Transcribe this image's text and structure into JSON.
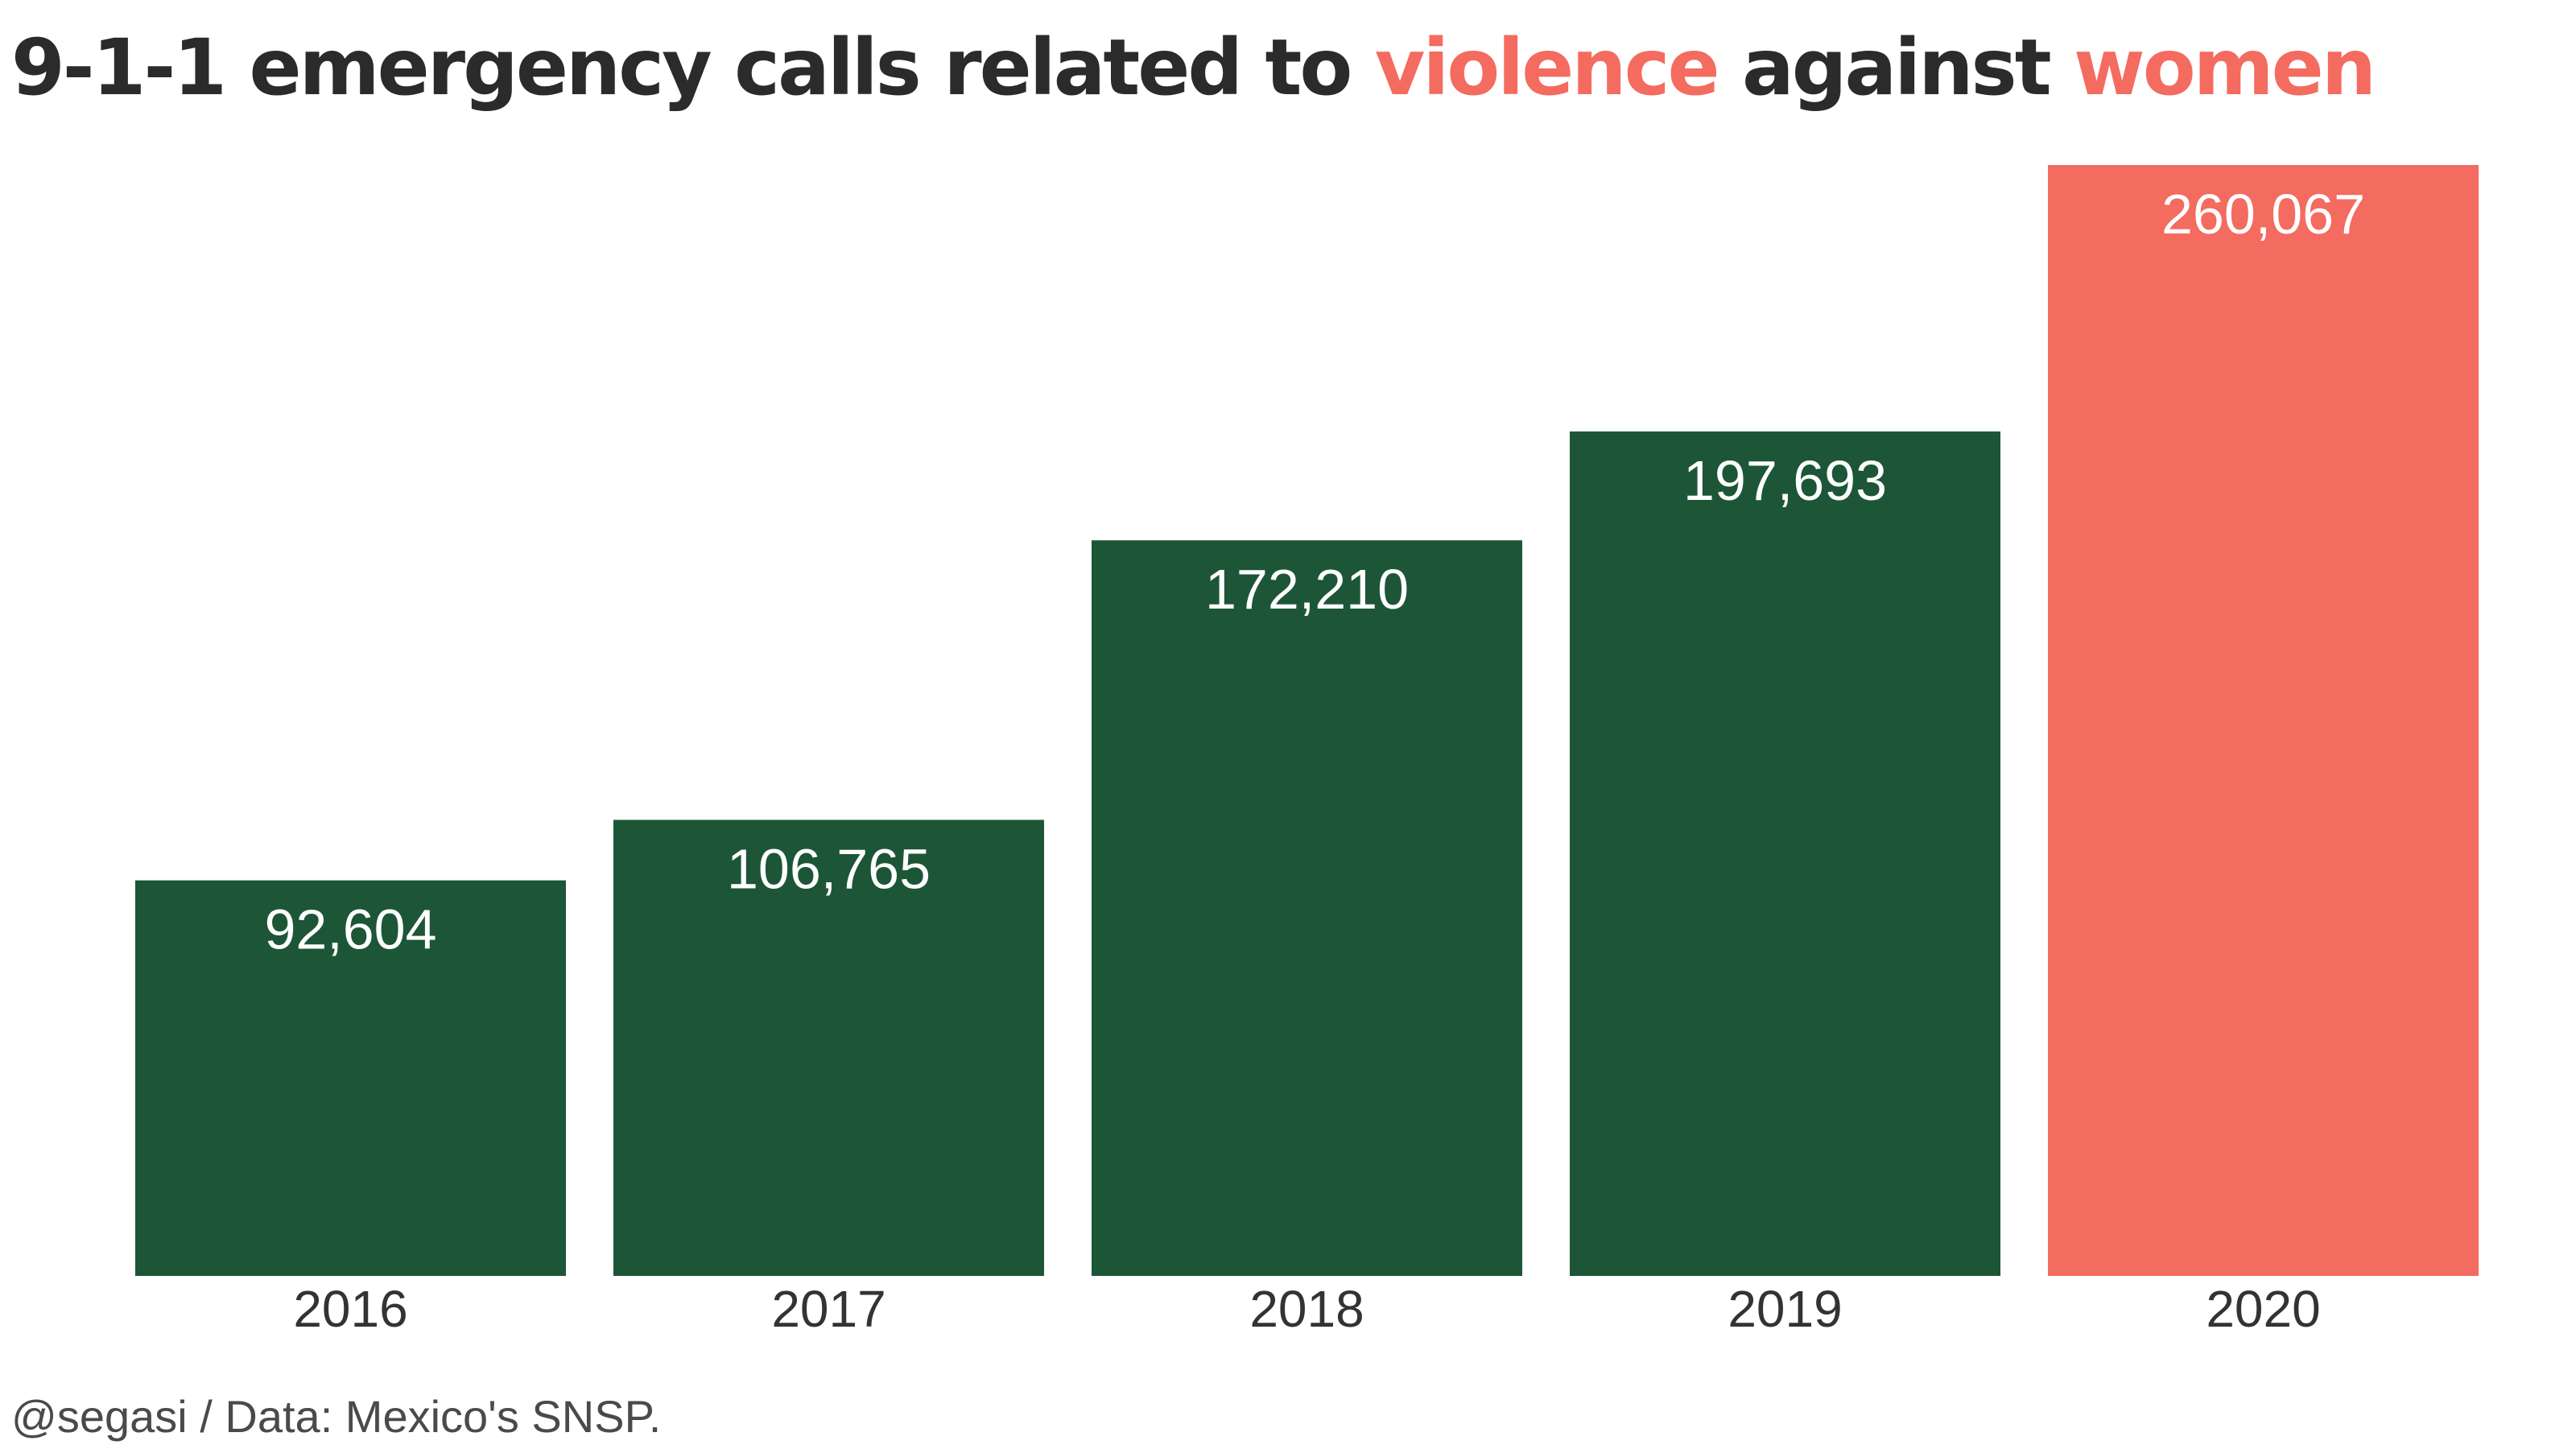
{
  "title": {
    "part1": "9-1-1 emergency calls related to ",
    "highlight1": "violence",
    "part2": " against ",
    "highlight2": "women"
  },
  "caption": "@segasi / Data: Mexico's SNSP.",
  "colors": {
    "bar_default": "#1c5637",
    "bar_highlight": "#f46b5f",
    "title_text": "#2b2b2b",
    "title_highlight": "#f46b5f",
    "value_label": "#ffffff",
    "tick_label": "#333333",
    "caption_text": "#4a4a4a"
  },
  "chart_data": {
    "type": "bar",
    "title": "9-1-1 emergency calls related to violence against women",
    "xlabel": "",
    "ylabel": "",
    "categories": [
      "2016",
      "2017",
      "2018",
      "2019",
      "2020"
    ],
    "values": [
      92604,
      106765,
      172210,
      197693,
      260067
    ],
    "value_labels": [
      "92,604",
      "106,765",
      "172,210",
      "197,693",
      "260,067"
    ],
    "highlight_category": "2020",
    "ylim": [
      0,
      260067
    ],
    "grid": false,
    "legend": "none"
  }
}
